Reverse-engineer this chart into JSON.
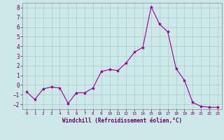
{
  "x": [
    0,
    1,
    2,
    3,
    4,
    5,
    6,
    7,
    8,
    9,
    10,
    11,
    12,
    13,
    14,
    15,
    16,
    17,
    18,
    19,
    20,
    21,
    22,
    23
  ],
  "y": [
    -0.7,
    -1.5,
    -0.4,
    -0.2,
    -0.3,
    -1.9,
    -0.8,
    -0.8,
    -0.3,
    1.4,
    1.6,
    1.5,
    2.3,
    3.4,
    3.9,
    8.1,
    6.3,
    5.5,
    1.7,
    0.5,
    -1.8,
    -2.2,
    -2.3,
    -2.3
  ],
  "line_color": "#990099",
  "marker": "*",
  "bg_color": "#cce8e8",
  "grid_color": "#aacccc",
  "xlabel": "Windchill (Refroidissement éolien,°C)",
  "xlabel_color": "#660066",
  "tick_color": "#660066",
  "spine_color": "#888888",
  "ylim": [
    -2.5,
    8.5
  ],
  "xlim": [
    -0.5,
    23.5
  ],
  "yticks": [
    -2,
    -1,
    0,
    1,
    2,
    3,
    4,
    5,
    6,
    7,
    8
  ],
  "xticks": [
    0,
    1,
    2,
    3,
    4,
    5,
    6,
    7,
    8,
    9,
    10,
    11,
    12,
    13,
    14,
    15,
    16,
    17,
    18,
    19,
    20,
    21,
    22,
    23
  ],
  "figsize": [
    3.2,
    2.0
  ],
  "dpi": 100
}
